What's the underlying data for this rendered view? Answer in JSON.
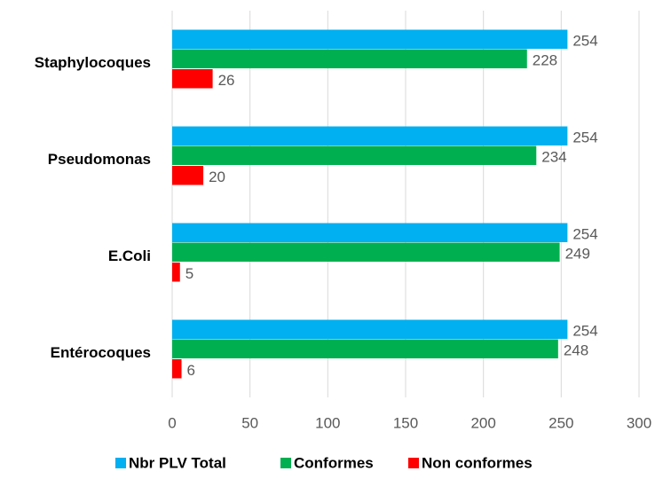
{
  "chart_data": {
    "type": "barh",
    "categories": [
      "Staphylocoques",
      "Pseudomonas",
      "E.Coli",
      "Entérocoques"
    ],
    "series": [
      {
        "name": "Nbr PLV Total",
        "color": "#00b0f0",
        "values": [
          254,
          254,
          254,
          254
        ]
      },
      {
        "name": "Conformes",
        "color": "#00b050",
        "values": [
          228,
          234,
          249,
          248
        ]
      },
      {
        "name": "Non conformes",
        "color": "#ff0000",
        "values": [
          26,
          20,
          5,
          6
        ]
      }
    ],
    "xlim": [
      0,
      300
    ],
    "xticks": [
      0,
      50,
      100,
      150,
      200,
      250,
      300
    ],
    "grid": true,
    "legend": "bottom"
  }
}
